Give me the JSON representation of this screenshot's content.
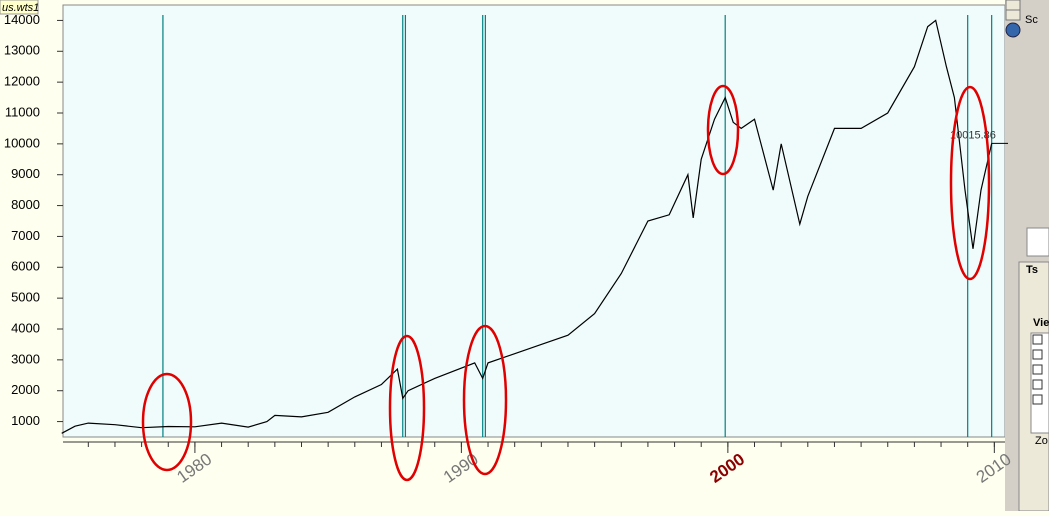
{
  "tab_title": "us.wts1",
  "chart_data": {
    "type": "line",
    "x": [
      1975.0,
      1975.5,
      1976.0,
      1977.0,
      1978.0,
      1979.0,
      1980.0,
      1981.0,
      1982.0,
      1982.7,
      1983.0,
      1984.0,
      1985.0,
      1986.0,
      1987.0,
      1987.6,
      1987.8,
      1988.0,
      1989.0,
      1990.5,
      1990.8,
      1991.0,
      1992.0,
      1993.0,
      1994.0,
      1995.0,
      1996.0,
      1997.0,
      1997.8,
      1998.5,
      1998.7,
      1999.0,
      1999.5,
      1999.9,
      2000.2,
      2000.5,
      2001.0,
      2001.7,
      2002.0,
      2002.7,
      2003.0,
      2004.0,
      2005.0,
      2006.0,
      2007.0,
      2007.5,
      2007.8,
      2008.2,
      2008.5,
      2008.9,
      2009.2,
      2009.5,
      2009.9
    ],
    "values": [
      620,
      850,
      950,
      900,
      800,
      840,
      830,
      950,
      820,
      1000,
      1200,
      1150,
      1300,
      1800,
      2200,
      2700,
      1750,
      2000,
      2400,
      2900,
      2400,
      2900,
      3200,
      3500,
      3800,
      4500,
      5800,
      7500,
      7700,
      9000,
      7600,
      9500,
      10800,
      11500,
      10700,
      10500,
      10800,
      8500,
      10000,
      7400,
      8300,
      10500,
      10500,
      11000,
      12500,
      13800,
      14000,
      12500,
      11500,
      8500,
      6600,
      8500,
      10015.86
    ],
    "color": "#000000",
    "price_label": "10015.86",
    "vlines": [
      1978.8,
      1987.8,
      1987.9,
      1990.8,
      1990.9,
      1999.9,
      2009.0,
      2009.9
    ],
    "xlim": [
      1975.05,
      2010.4
    ],
    "ylim": [
      500,
      14500
    ],
    "xticks": [
      1980,
      1990,
      2000,
      2010
    ],
    "highlight_xtick": 2000,
    "yticks": [
      1000,
      2000,
      3000,
      4000,
      5000,
      6000,
      7000,
      8000,
      9000,
      10000,
      11000,
      12000,
      13000,
      14000
    ]
  },
  "ui": {
    "top_label": "Sc",
    "view_label": "Vie",
    "zoom_label": "Zo",
    "ts_label": "Ts"
  }
}
